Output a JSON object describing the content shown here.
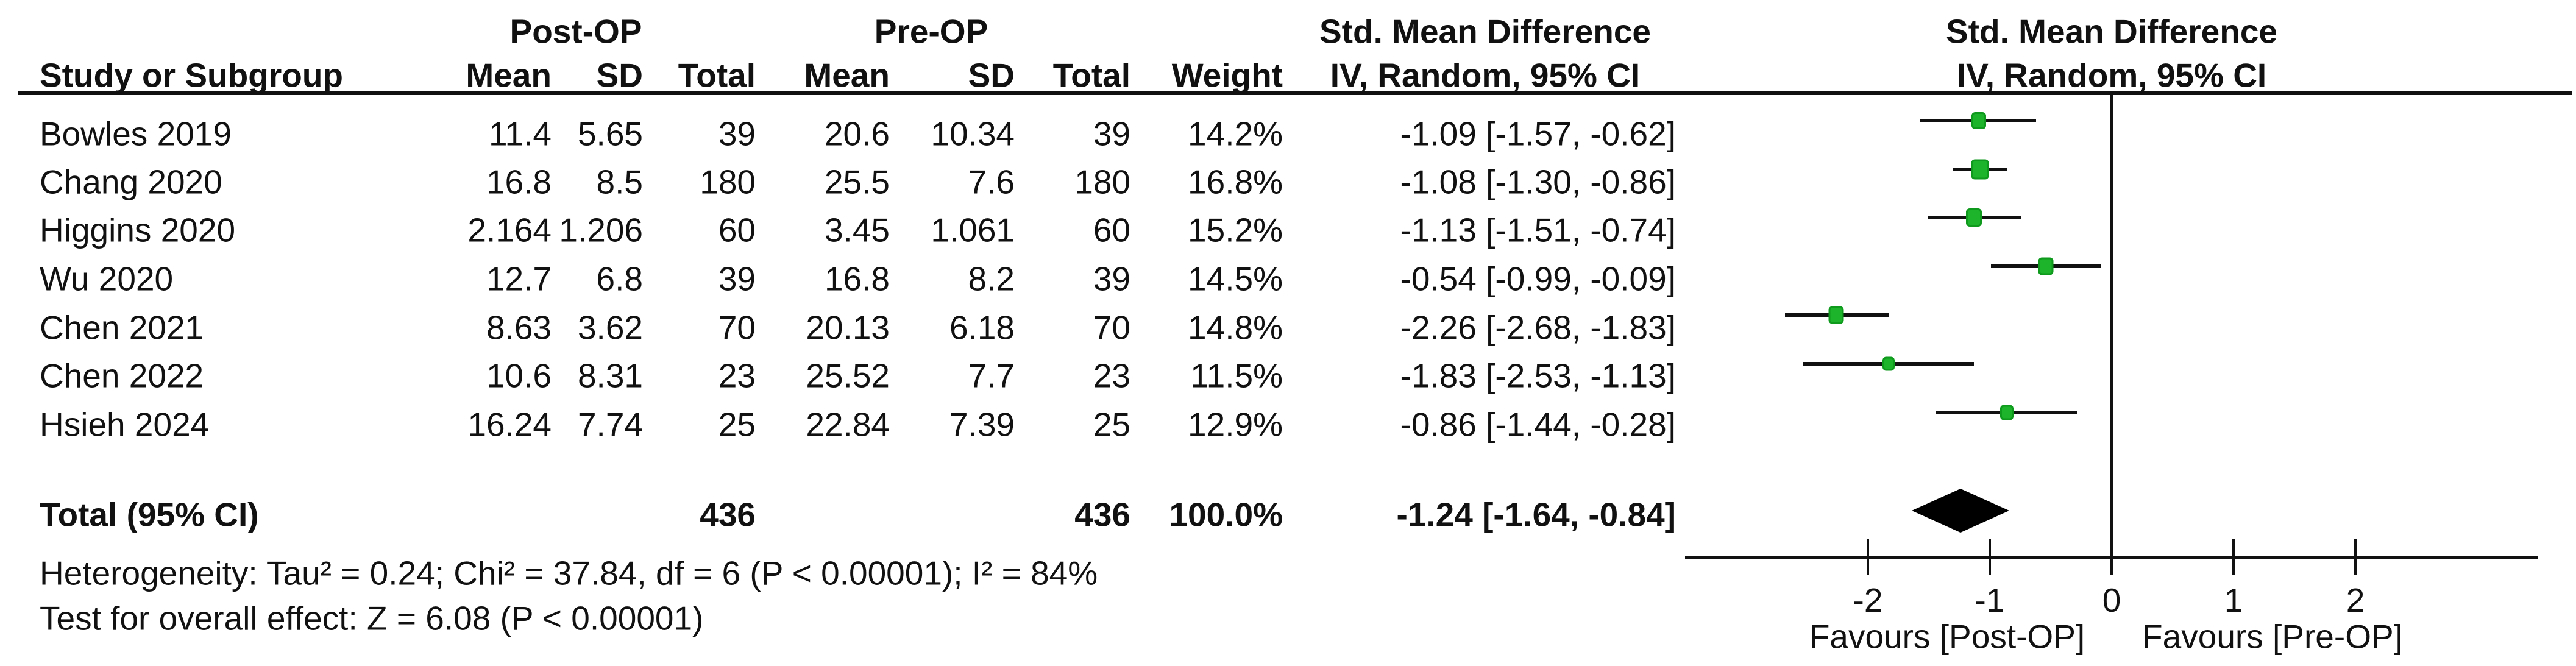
{
  "headers": {
    "group1": "Post-OP",
    "group2": "Pre-OP",
    "effect": "Std. Mean Difference",
    "effect_plot": "Std. Mean Difference",
    "study": "Study or Subgroup",
    "mean": "Mean",
    "sd": "SD",
    "total": "Total",
    "weight": "Weight",
    "method_ci": "IV, Random, 95% CI",
    "method_ci_plot": "IV, Random, 95% CI"
  },
  "studies": [
    {
      "name": "Bowles 2019",
      "post_mean": "11.4",
      "post_sd": "5.65",
      "post_total": "39",
      "pre_mean": "20.6",
      "pre_sd": "10.34",
      "pre_total": "39",
      "weight": "14.2%",
      "smd_text": "-1.09 [-1.57, -0.62]"
    },
    {
      "name": "Chang 2020",
      "post_mean": "16.8",
      "post_sd": "8.5",
      "post_total": "180",
      "pre_mean": "25.5",
      "pre_sd": "7.6",
      "pre_total": "180",
      "weight": "16.8%",
      "smd_text": "-1.08 [-1.30, -0.86]"
    },
    {
      "name": "Higgins 2020",
      "post_mean": "2.164",
      "post_sd": "1.206",
      "post_total": "60",
      "pre_mean": "3.45",
      "pre_sd": "1.061",
      "pre_total": "60",
      "weight": "15.2%",
      "smd_text": "-1.13 [-1.51, -0.74]"
    },
    {
      "name": "Wu 2020",
      "post_mean": "12.7",
      "post_sd": "6.8",
      "post_total": "39",
      "pre_mean": "16.8",
      "pre_sd": "8.2",
      "pre_total": "39",
      "weight": "14.5%",
      "smd_text": "-0.54 [-0.99, -0.09]"
    },
    {
      "name": "Chen 2021",
      "post_mean": "8.63",
      "post_sd": "3.62",
      "post_total": "70",
      "pre_mean": "20.13",
      "pre_sd": "6.18",
      "pre_total": "70",
      "weight": "14.8%",
      "smd_text": "-2.26 [-2.68, -1.83]"
    },
    {
      "name": "Chen 2022",
      "post_mean": "10.6",
      "post_sd": "8.31",
      "post_total": "23",
      "pre_mean": "25.52",
      "pre_sd": "7.7",
      "pre_total": "23",
      "weight": "11.5%",
      "smd_text": "-1.83 [-2.53, -1.13]"
    },
    {
      "name": "Hsieh 2024",
      "post_mean": "16.24",
      "post_sd": "7.74",
      "post_total": "25",
      "pre_mean": "22.84",
      "pre_sd": "7.39",
      "pre_total": "25",
      "weight": "12.9%",
      "smd_text": "-0.86 [-1.44, -0.28]"
    }
  ],
  "totals": {
    "label": "Total (95% CI)",
    "post_total": "436",
    "pre_total": "436",
    "weight": "100.0%",
    "smd_text": "-1.24 [-1.64, -0.84]"
  },
  "footnotes": {
    "heterogeneity": "Heterogeneity: Tau² = 0.24; Chi² = 37.84, df = 6 (P < 0.00001); I² = 84%",
    "overall_effect": "Test for overall effect: Z = 6.08 (P < 0.00001)"
  },
  "plot": {
    "favours_left": "Favours [Post-OP]",
    "favours_right": "Favours [Pre-OP]",
    "axis_ticks": [
      "-2",
      "-1",
      "0",
      "1",
      "2"
    ],
    "marker_color": "#1db32b",
    "diamond_color": "#000000"
  },
  "chart_data": {
    "type": "scatter",
    "subtype": "forest-plot",
    "title": "Std. Mean Difference IV, Random, 95% CI",
    "xlim": [
      -3.5,
      3.5
    ],
    "x_ticks": [
      -2,
      -1,
      0,
      1,
      2
    ],
    "zero_line": 0,
    "xlabel_left": "Favours [Post-OP]",
    "xlabel_right": "Favours [Pre-OP]",
    "series": [
      {
        "name": "Bowles 2019",
        "smd": -1.09,
        "ci": [
          -1.57,
          -0.62
        ],
        "weight_pct": 14.2
      },
      {
        "name": "Chang 2020",
        "smd": -1.08,
        "ci": [
          -1.3,
          -0.86
        ],
        "weight_pct": 16.8
      },
      {
        "name": "Higgins 2020",
        "smd": -1.13,
        "ci": [
          -1.51,
          -0.74
        ],
        "weight_pct": 15.2
      },
      {
        "name": "Wu 2020",
        "smd": -0.54,
        "ci": [
          -0.99,
          -0.09
        ],
        "weight_pct": 14.5
      },
      {
        "name": "Chen 2021",
        "smd": -2.26,
        "ci": [
          -2.68,
          -1.83
        ],
        "weight_pct": 14.8
      },
      {
        "name": "Chen 2022",
        "smd": -1.83,
        "ci": [
          -2.53,
          -1.13
        ],
        "weight_pct": 11.5
      },
      {
        "name": "Hsieh 2024",
        "smd": -0.86,
        "ci": [
          -1.44,
          -0.28
        ],
        "weight_pct": 12.9
      }
    ],
    "overall": {
      "name": "Total (95% CI)",
      "smd": -1.24,
      "ci": [
        -1.64,
        -0.84
      ],
      "weight_pct": 100.0
    }
  }
}
